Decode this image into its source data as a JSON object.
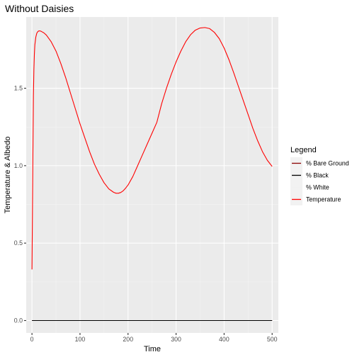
{
  "chart_data": {
    "type": "line",
    "title": "Without Daisies",
    "xlabel": "Time",
    "ylabel": "Temperature & Albedo",
    "xlim": [
      -12,
      513
    ],
    "ylim": [
      -0.08,
      1.96
    ],
    "xticks": [
      0,
      100,
      200,
      300,
      400,
      500
    ],
    "yticks": [
      0.0,
      0.5,
      1.0,
      1.5
    ],
    "x_tick_labels": [
      "0",
      "100",
      "200",
      "300",
      "400",
      "500"
    ],
    "y_tick_labels": [
      "0.0",
      "0.5",
      "1.0",
      "1.5"
    ],
    "grid": true,
    "legend": {
      "title": "Legend",
      "position": "right",
      "entries": [
        {
          "label": "% Bare Ground",
          "color": "#8b0000"
        },
        {
          "label": "% Black",
          "color": "#000000"
        },
        {
          "label": "% White",
          "color": "#f0f0f0"
        },
        {
          "label": "Temperature",
          "color": "#ff0000"
        }
      ]
    },
    "series": [
      {
        "name": "Temperature",
        "color": "#ff0000",
        "x": [
          0,
          1,
          2,
          3,
          4,
          5,
          6,
          8,
          10,
          12,
          14,
          17,
          20,
          25,
          30,
          40,
          50,
          60,
          70,
          80,
          90,
          100,
          110,
          120,
          130,
          140,
          150,
          160,
          170,
          175,
          180,
          185,
          190,
          195,
          200,
          210,
          220,
          230,
          240,
          250,
          260,
          270,
          275,
          280,
          290,
          300,
          310,
          320,
          330,
          340,
          350,
          360,
          370,
          380,
          390,
          400,
          410,
          420,
          430,
          440,
          450,
          460,
          470,
          480,
          490,
          500
        ],
        "y": [
          0.33,
          0.7,
          1.1,
          1.45,
          1.62,
          1.72,
          1.78,
          1.83,
          1.855,
          1.865,
          1.87,
          1.87,
          1.866,
          1.857,
          1.843,
          1.8,
          1.74,
          1.66,
          1.57,
          1.47,
          1.37,
          1.27,
          1.18,
          1.09,
          1.01,
          0.945,
          0.89,
          0.85,
          0.828,
          0.822,
          0.822,
          0.827,
          0.838,
          0.855,
          0.875,
          0.93,
          1.0,
          1.07,
          1.14,
          1.21,
          1.28,
          1.4,
          1.45,
          1.5,
          1.59,
          1.67,
          1.74,
          1.8,
          1.845,
          1.875,
          1.889,
          1.892,
          1.885,
          1.86,
          1.82,
          1.76,
          1.685,
          1.6,
          1.51,
          1.42,
          1.33,
          1.24,
          1.16,
          1.09,
          1.035,
          0.995
        ]
      },
      {
        "name": "% Black",
        "color": "#000000",
        "x": [
          0,
          500
        ],
        "y": [
          0.0,
          0.0
        ]
      },
      {
        "name": "% Bare Ground",
        "color": "#8b0000",
        "x": [
          0,
          500
        ],
        "y": [
          0.0,
          0.0
        ]
      }
    ]
  }
}
